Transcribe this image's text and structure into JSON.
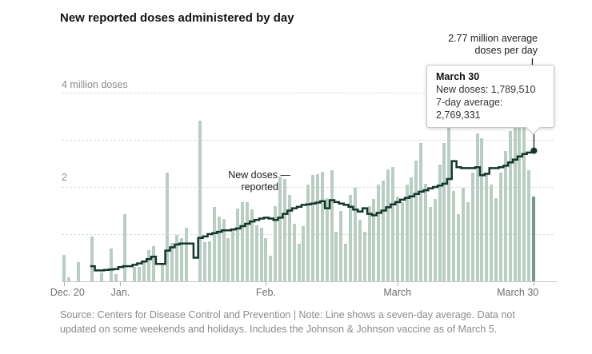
{
  "title": "New reported doses administered by day",
  "y_axis": {
    "label_top": "4 million doses",
    "label_mid": "2"
  },
  "annotations": {
    "avg_line1": "2.77 million average",
    "avg_line2": "doses per day",
    "new_doses_line1": "New doses —",
    "new_doses_line2": "reported"
  },
  "tooltip": {
    "title": "March 30",
    "new_doses": "New doses: 1,789,510",
    "seven_day": "7-day average: 2,769,331"
  },
  "footer": {
    "line1": "Source: Centers for Disease Control and Prevention | Note: Line shows a seven-day average. Data not",
    "line2": "updated on some weekends and holidays. Includes the Johnson & Johnson vaccine as of March 5."
  },
  "colors": {
    "bar": "#b9cec3",
    "bar_highlight": "#76988c",
    "line": "#12382b",
    "pointer": "#222222"
  },
  "chart_data": {
    "type": "bar+line",
    "title": "New reported doses administered by day",
    "unit": "million doses",
    "ylim": [
      0,
      4.3
    ],
    "gridlines": [
      1,
      2,
      3,
      4
    ],
    "grid_on": true,
    "x_ticks": [
      {
        "label": "Dec. 20",
        "day": 0
      },
      {
        "label": "Jan.",
        "day": 12
      },
      {
        "label": "Feb.",
        "day": 43
      },
      {
        "label": "March",
        "day": 71
      },
      {
        "label": "March 30",
        "day": 100
      }
    ],
    "highlight_index": 100,
    "highlight": {
      "date": "March 30",
      "new_doses": 1789510,
      "seven_day_average": 2769331
    },
    "series": [
      {
        "name": "New doses reported",
        "type": "bar",
        "values": [
          0.56,
          0.09,
          0,
          0.41,
          0,
          0,
          0.95,
          0,
          0.19,
          0,
          0.69,
          0.15,
          0,
          1.43,
          0,
          0.3,
          0.31,
          0.44,
          0.66,
          0.74,
          0,
          0.38,
          2.3,
          0.82,
          0.99,
          0.91,
          1.13,
          0,
          0,
          3.41,
          0.83,
          0.85,
          1.58,
          1.38,
          1.33,
          0.92,
          1.1,
          1.55,
          1.68,
          1.68,
          1.52,
          1.18,
          1.13,
          0.92,
          0.55,
          1.6,
          2.22,
          2.17,
          1.83,
          1.22,
          0.8,
          1.17,
          2.05,
          2.25,
          2.27,
          2.33,
          1.77,
          2.35,
          1.05,
          1.5,
          0.8,
          1.83,
          1.98,
          1.3,
          1.05,
          1.6,
          1.74,
          2.05,
          2.13,
          2.38,
          2.43,
          1.8,
          1.68,
          2.05,
          2.21,
          2.56,
          2.93,
          2.07,
          1.58,
          1.75,
          2.48,
          2.93,
          3.55,
          1.92,
          1.42,
          1.98,
          1.67,
          2.3,
          3.13,
          3.03,
          2.3,
          2.05,
          1.77,
          2.3,
          2.77,
          3.18,
          3.37,
          3.47,
          3.25,
          2.35,
          1.79
        ]
      },
      {
        "name": "7-day average",
        "type": "line",
        "values": [
          null,
          null,
          null,
          null,
          null,
          null,
          0.32,
          0.23,
          0.23,
          0.24,
          0.25,
          0.26,
          0.3,
          0.32,
          0.32,
          0.35,
          0.38,
          0.42,
          0.47,
          0.52,
          0.37,
          0.37,
          0.65,
          0.72,
          0.78,
          0.8,
          0.8,
          0.8,
          0.5,
          0.92,
          0.95,
          1.0,
          1.02,
          1.05,
          1.08,
          1.08,
          1.1,
          1.12,
          1.17,
          1.22,
          1.27,
          1.3,
          1.33,
          1.35,
          1.33,
          1.3,
          1.35,
          1.43,
          1.5,
          1.55,
          1.58,
          1.62,
          1.63,
          1.65,
          1.67,
          1.7,
          1.55,
          1.72,
          1.68,
          1.65,
          1.62,
          1.58,
          1.52,
          1.48,
          1.55,
          1.43,
          1.4,
          1.45,
          1.5,
          1.57,
          1.63,
          1.68,
          1.73,
          1.77,
          1.8,
          1.85,
          1.9,
          1.93,
          1.97,
          2.0,
          2.03,
          2.07,
          2.17,
          2.55,
          2.42,
          2.4,
          2.4,
          2.4,
          2.42,
          2.25,
          2.28,
          2.4,
          2.4,
          2.42,
          2.45,
          2.52,
          2.58,
          2.65,
          2.7,
          2.73,
          2.77
        ]
      }
    ]
  }
}
